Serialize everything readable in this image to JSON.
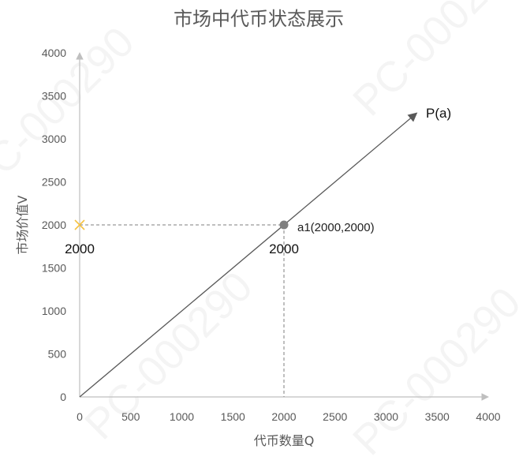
{
  "chart_data": {
    "type": "line",
    "title": "市场中代币状态展示",
    "xlabel": "代币数量Q",
    "ylabel": "市场价值V",
    "xlim": [
      0,
      4000
    ],
    "ylim": [
      0,
      4000
    ],
    "x_ticks": [
      "0",
      "500",
      "1000",
      "1500",
      "2000",
      "2500",
      "3000",
      "3500",
      "4000"
    ],
    "y_ticks": [
      "0",
      "500",
      "1000",
      "1500",
      "2000",
      "2500",
      "3000",
      "3500",
      "4000"
    ],
    "grid": false,
    "series": [
      {
        "name": "P(a)",
        "x": [
          0,
          3300
        ],
        "y": [
          0,
          3300
        ],
        "color": "#595959",
        "arrow": true
      }
    ],
    "points": [
      {
        "label": "a1(2000,2000)",
        "x": 2000,
        "y": 2000,
        "color": "#7f7f7f",
        "marker": "circle"
      },
      {
        "label": "",
        "x": 0,
        "y": 2000,
        "color": "#f5c242",
        "marker": "cross"
      }
    ],
    "annotations": [
      {
        "text": "2000",
        "near": "y-axis crossing"
      },
      {
        "text": "2000",
        "near": "x-axis projection"
      }
    ],
    "watermark_text": "PC-000290",
    "colors": {
      "axis": "#bfbfbf",
      "text": "#595959",
      "line": "#595959",
      "marker_cross": "#f5c242",
      "marker_point": "#7f7f7f"
    }
  }
}
